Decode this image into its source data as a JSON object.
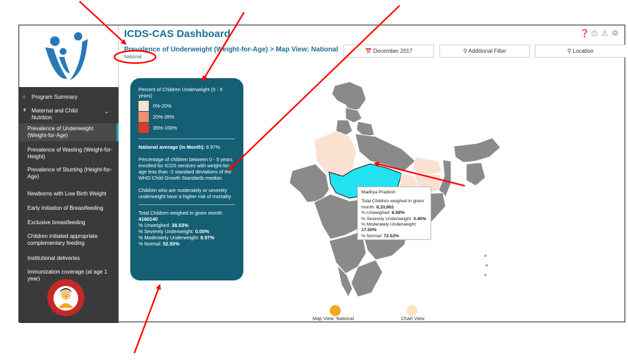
{
  "header": {
    "title": "ICDS-CAS Dashboard",
    "icons": [
      "help-icon",
      "print-icon",
      "warning-icon",
      "settings-icon"
    ]
  },
  "view": {
    "title": "Prevalence of Underweight (Weight-for-Age) > Map View: National",
    "location_level": "National"
  },
  "filters": {
    "month": "December 2017",
    "additional": "Additional Filter",
    "location": "Location"
  },
  "sidebar": {
    "items": [
      {
        "label": "Program Summary",
        "icon": "home-icon"
      },
      {
        "label": "Maternal and Child Nutrition",
        "icon": "person-icon"
      },
      {
        "label": "Prevalence of Underweight (Weight-for-Age)",
        "active": true
      },
      {
        "label": "Prevalence of Wasting (Weight-for-Height)"
      },
      {
        "label": "Prevalence of Stunting (Height-for-Age)"
      },
      {
        "label": "Newborns with Low Birth Weight"
      },
      {
        "label": "Early Initiation of Breastfeeding"
      },
      {
        "label": "Exclusive breastfeeding"
      },
      {
        "label": "Children initiated appropriate complementary feeding"
      },
      {
        "label": "Institutional deliveries"
      },
      {
        "label": "Immunization coverage (at age 1 year)"
      }
    ]
  },
  "legend": {
    "title": "Percent of Children Underweight (0 - 5 years)",
    "ranges": [
      {
        "label": "0%-20%",
        "color": "#fbe1d2"
      },
      {
        "label": "20%-35%",
        "color": "#f08e70"
      },
      {
        "label": "35%-100%",
        "color": "#dc3a2a"
      }
    ],
    "national_avg_label": "National average (in Month):",
    "national_avg_value": "8.97%",
    "definition": "Percentage of children between 0 - 5 years enrolled for ICDS services with weight-for-age less than -2 standard deviations of the WHO Child Growth Standards median.",
    "risk_note": "Children who are moderately or severely underweight have a higher risk of mortality",
    "total_label": "Total Children weighed in given month:",
    "total_value": "4160140",
    "unweighed_label": "% Unweighed:",
    "unweighed_value": "38.53%",
    "severe_label": "% Severely Underweight:",
    "severe_value": "0.00%",
    "moderate_label": "% Moderately Underweight:",
    "moderate_value": "8.97%",
    "normal_label": "% Normal:",
    "normal_value": "52.50%"
  },
  "tooltip": {
    "state": "Madhya Pradesh",
    "total_label": "Total Children weighed in given month:",
    "total_value": "8,33,661",
    "unweighed_label": "% Unweighed:",
    "unweighed_value": "6.59%",
    "severe_label": "% Severely Underweight:",
    "severe_value": "3.40%",
    "moderate_label": "% Moderately Underweight:",
    "moderate_value": "17.50%",
    "normal_label": "% Normal:",
    "normal_value": "72.52%"
  },
  "toggles": {
    "map_label": "Map View: National",
    "chart_label": "Chart View",
    "map_color": "#f5a623",
    "chart_color": "#fde3c0"
  },
  "colors": {
    "panel": "#155f75",
    "title": "#1b6f96",
    "highlight": "#22e1f0",
    "annotation": "#ff0000"
  }
}
